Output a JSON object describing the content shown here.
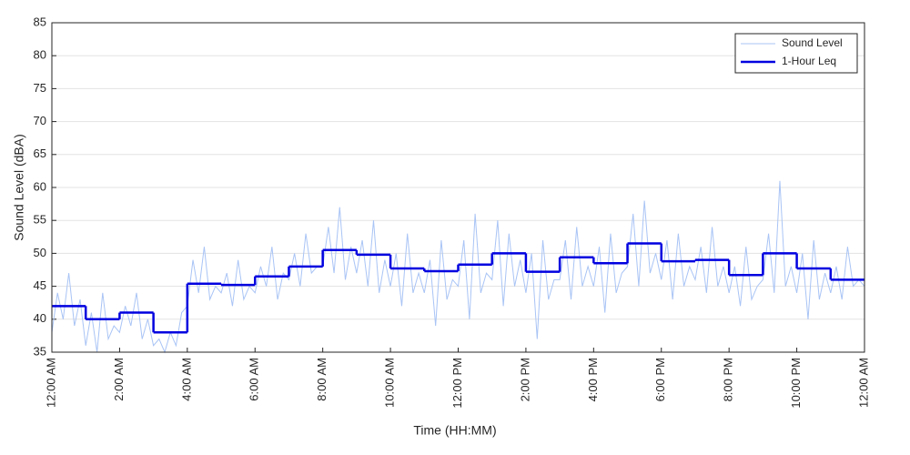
{
  "chart_data": {
    "type": "line",
    "xlabel": "Time (HH:MM)",
    "ylabel": "Sound Level (dBA)",
    "xlim": [
      0,
      1440
    ],
    "xticks": [
      {
        "value": 0,
        "label": "12:00 AM"
      },
      {
        "value": 120,
        "label": "2:00 AM"
      },
      {
        "value": 240,
        "label": "4:00 AM"
      },
      {
        "value": 360,
        "label": "6:00 AM"
      },
      {
        "value": 480,
        "label": "8:00 AM"
      },
      {
        "value": 600,
        "label": "10:00 AM"
      },
      {
        "value": 720,
        "label": "12:00 PM"
      },
      {
        "value": 840,
        "label": "2:00 PM"
      },
      {
        "value": 960,
        "label": "4:00 PM"
      },
      {
        "value": 1080,
        "label": "6:00 PM"
      },
      {
        "value": 1200,
        "label": "8:00 PM"
      },
      {
        "value": 1320,
        "label": "10:00 PM"
      },
      {
        "value": 1440,
        "label": "12:00 AM"
      }
    ],
    "ylim": [
      35,
      85
    ],
    "yticks": [
      35,
      40,
      45,
      50,
      55,
      60,
      65,
      70,
      75,
      80,
      85
    ],
    "grid": true,
    "legend": "upper right",
    "series": [
      {
        "name": "Sound Level",
        "color": "#a9c4f5",
        "style": "line",
        "x": [
          0,
          10,
          20,
          30,
          40,
          50,
          60,
          70,
          80,
          90,
          100,
          110,
          120,
          130,
          140,
          150,
          160,
          170,
          180,
          190,
          200,
          210,
          220,
          230,
          240,
          250,
          260,
          270,
          280,
          290,
          300,
          310,
          320,
          330,
          340,
          350,
          360,
          370,
          380,
          390,
          400,
          410,
          420,
          430,
          440,
          450,
          460,
          470,
          480,
          490,
          500,
          510,
          520,
          530,
          540,
          550,
          560,
          570,
          580,
          590,
          600,
          610,
          620,
          630,
          640,
          650,
          660,
          670,
          680,
          690,
          700,
          710,
          720,
          730,
          740,
          750,
          760,
          770,
          780,
          790,
          800,
          810,
          820,
          830,
          840,
          850,
          860,
          870,
          880,
          890,
          900,
          910,
          920,
          930,
          940,
          950,
          960,
          970,
          980,
          990,
          1000,
          1010,
          1020,
          1030,
          1040,
          1050,
          1060,
          1070,
          1080,
          1090,
          1100,
          1110,
          1120,
          1130,
          1140,
          1150,
          1160,
          1170,
          1180,
          1190,
          1200,
          1210,
          1220,
          1230,
          1240,
          1250,
          1260,
          1270,
          1280,
          1290,
          1300,
          1310,
          1320,
          1330,
          1340,
          1350,
          1360,
          1370,
          1380,
          1390,
          1400,
          1410,
          1420,
          1430,
          1440
        ],
        "values": [
          38,
          44,
          40,
          47,
          39,
          43,
          36,
          41,
          35,
          44,
          37,
          39,
          38,
          42,
          39,
          44,
          37,
          40,
          36,
          37,
          35,
          38,
          36,
          41,
          42,
          49,
          44,
          51,
          43,
          45,
          44,
          47,
          42,
          49,
          43,
          45,
          44,
          48,
          45,
          51,
          43,
          47,
          46,
          50,
          45,
          53,
          47,
          48,
          48,
          54,
          47,
          57,
          46,
          51,
          47,
          52,
          45,
          55,
          44,
          49,
          45,
          50,
          42,
          53,
          44,
          47,
          44,
          49,
          39,
          52,
          43,
          46,
          45,
          52,
          40,
          56,
          44,
          47,
          46,
          55,
          42,
          53,
          45,
          49,
          44,
          50,
          37,
          52,
          43,
          46,
          46,
          52,
          43,
          54,
          45,
          48,
          45,
          51,
          41,
          53,
          44,
          47,
          48,
          56,
          45,
          58,
          47,
          50,
          46,
          52,
          43,
          53,
          45,
          48,
          46,
          51,
          44,
          54,
          45,
          48,
          44,
          48,
          42,
          51,
          43,
          45,
          46,
          53,
          44,
          61,
          45,
          48,
          44,
          50,
          40,
          52,
          43,
          47,
          44,
          48,
          43,
          51,
          45,
          46,
          45
        ]
      },
      {
        "name": "1-Hour Leq",
        "color": "#0000e0",
        "style": "step",
        "x": [
          0,
          60,
          120,
          180,
          240,
          300,
          360,
          420,
          480,
          540,
          600,
          660,
          720,
          780,
          840,
          900,
          960,
          1020,
          1080,
          1140,
          1200,
          1260,
          1320,
          1380
        ],
        "values": [
          42,
          40,
          41,
          38,
          45.4,
          45.2,
          46.5,
          48,
          50.5,
          49.8,
          47.7,
          47.3,
          48.3,
          50,
          47.2,
          49.4,
          48.5,
          51.5,
          48.8,
          49,
          46.7,
          50,
          47.7,
          46
        ]
      }
    ]
  }
}
